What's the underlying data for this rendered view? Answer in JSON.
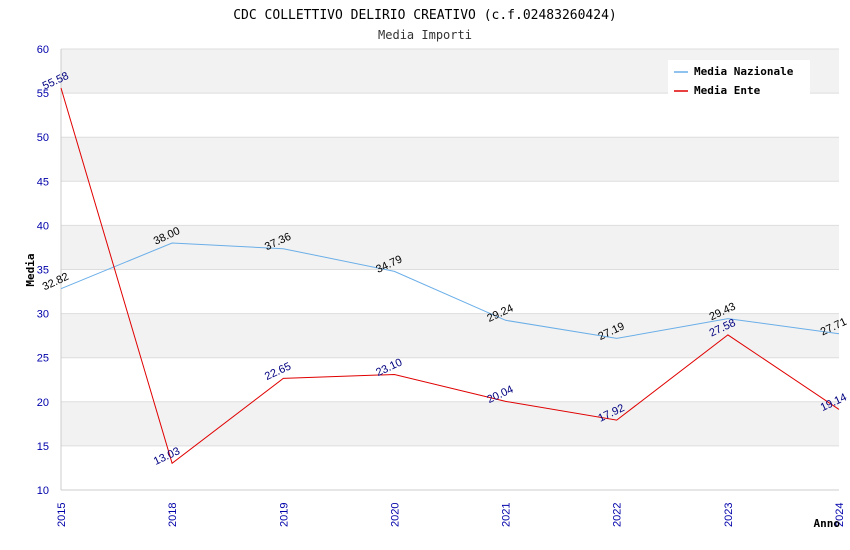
{
  "chart_data": {
    "type": "line",
    "title": "CDC COLLETTIVO DELIRIO CREATIVO (c.f.02483260424)",
    "subtitle": "Media Importi",
    "xlabel": "Anno",
    "ylabel": "Media",
    "categories": [
      "2015",
      "2018",
      "2019",
      "2020",
      "2021",
      "2022",
      "2023",
      "2024"
    ],
    "ylim": [
      10,
      60
    ],
    "yticks": [
      10,
      15,
      20,
      25,
      30,
      35,
      40,
      45,
      50,
      55,
      60
    ],
    "grid": true,
    "legend_position": "top-right",
    "series": [
      {
        "name": "Media Nazionale",
        "color": "#6aaee8",
        "label_color": "#000000",
        "values": [
          32.82,
          38.0,
          37.36,
          34.79,
          29.24,
          27.19,
          29.43,
          27.71
        ],
        "labels": [
          "32.82",
          "38.00",
          "37.36",
          "34.79",
          "29.24",
          "27.19",
          "29.43",
          "27.71"
        ]
      },
      {
        "name": "Media Ente",
        "color": "#e00000",
        "label_color": "#000080",
        "values": [
          55.58,
          13.03,
          22.65,
          23.1,
          20.04,
          17.92,
          27.58,
          19.14
        ],
        "labels": [
          "55.58",
          "13.03",
          "22.65",
          "23.10",
          "20.04",
          "17.92",
          "27.58",
          "19.14"
        ]
      }
    ]
  }
}
